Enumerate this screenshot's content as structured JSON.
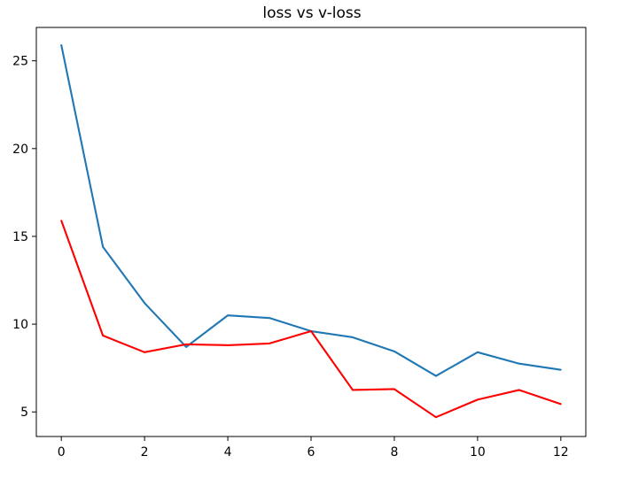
{
  "chart_data": {
    "type": "line",
    "title": "loss vs v-loss",
    "xlabel": "",
    "ylabel": "",
    "x": [
      0,
      1,
      2,
      3,
      4,
      5,
      6,
      7,
      8,
      9,
      10,
      11,
      12
    ],
    "xlim": [
      -0.6,
      12.6
    ],
    "ylim": [
      3.6,
      26.9
    ],
    "xticks": [
      0,
      2,
      4,
      6,
      8,
      10,
      12
    ],
    "yticks": [
      5,
      10,
      15,
      20,
      25
    ],
    "grid": false,
    "legend": "none",
    "series": [
      {
        "color": "#1f77b4",
        "values": [
          25.9,
          14.4,
          11.2,
          8.7,
          10.5,
          10.35,
          9.6,
          9.25,
          8.45,
          7.05,
          8.4,
          7.75,
          7.4
        ]
      },
      {
        "color": "#ff0000",
        "values": [
          15.9,
          9.35,
          8.4,
          8.85,
          8.8,
          8.9,
          9.6,
          6.25,
          6.3,
          4.7,
          5.7,
          6.25,
          5.45
        ]
      }
    ]
  }
}
